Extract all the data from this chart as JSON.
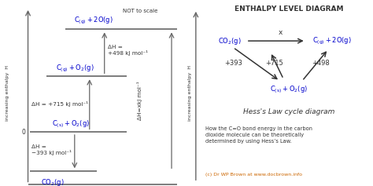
{
  "bg_color": "#ffffff",
  "blue": "#0000cc",
  "black": "#333333",
  "orange": "#cc6600",
  "gray": "#666666",
  "not_to_scale": "NOT to scale",
  "title_right": "ENTHALPY LEVEL DIAGRAM",
  "hess_title": "Hess's Law cycle diagram",
  "description": "How the C=O bond energy in the carbon\ndioxide molecule can be theoretically\ndetermined by using Hess’s Law.",
  "credit": "(c) Dr WP Brown at www.docbrown.info",
  "left_ylabel": "increasing enthalpy  H",
  "right_ylabel": "increasing enthalpy  H"
}
